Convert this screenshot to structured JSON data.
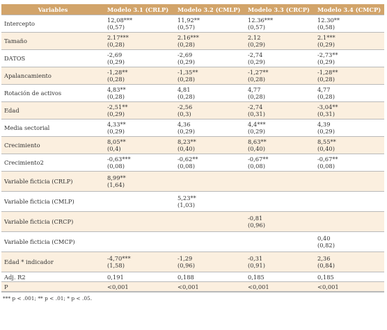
{
  "table": {
    "headers": [
      "Variables",
      "Modelo 3.1 (CRLP)",
      "Modelo 3.2 (CMLP)",
      "Modelo 3.3 (CRCP)",
      "Modelo 3.4 (CMCP)"
    ],
    "rows": [
      {
        "label": "Intercepto",
        "shade": "plain",
        "h": "tall",
        "cells": [
          {
            "v": "12,08***",
            "se": "(0,57)"
          },
          {
            "v": "11,92**",
            "se": "(0,57)"
          },
          {
            "v": "12.36***",
            "se": "(0,57)"
          },
          {
            "v": "12.30**",
            "se": "(0,58)"
          }
        ]
      },
      {
        "label": "Tamaño",
        "shade": "tan",
        "h": "tall",
        "cells": [
          {
            "v": "2.17***",
            "se": "(0,28)"
          },
          {
            "v": "2.16***",
            "se": "(0,28)"
          },
          {
            "v": "2.12",
            "se": "(0,29)"
          },
          {
            "v": "2.1***",
            "se": "(0,29)"
          }
        ]
      },
      {
        "label": "DATOS",
        "shade": "plain",
        "h": "tall",
        "cells": [
          {
            "v": "-2,69",
            "se": "(0,29)"
          },
          {
            "v": "-2,69",
            "se": "(0,29)"
          },
          {
            "v": "-2,74",
            "se": "(0,29)"
          },
          {
            "v": "-2,73**",
            "se": "(0,29)"
          }
        ]
      },
      {
        "label": "Apalancamiento",
        "shade": "tan",
        "h": "tall",
        "cells": [
          {
            "v": "-1,28**",
            "se": "(0,28)"
          },
          {
            "v": "-1,35**",
            "se": "(0,28)"
          },
          {
            "v": "-1,27**",
            "se": "(0,28)"
          },
          {
            "v": "-1,28**",
            "se": "(0,28)"
          }
        ]
      },
      {
        "label": "Rotación de activos",
        "shade": "plain",
        "h": "tall",
        "cells": [
          {
            "v": "4,83**",
            "se": "(0,28)"
          },
          {
            "v": "4,81",
            "se": "(0,28)"
          },
          {
            "v": "4,77",
            "se": "(0,28)"
          },
          {
            "v": "4,77",
            "se": "(0,28)"
          }
        ]
      },
      {
        "label": "Edad",
        "shade": "tan",
        "h": "tall",
        "cells": [
          {
            "v": "-2,51**",
            "se": "(0,29)"
          },
          {
            "v": "-2,56",
            "se": "(0,3)"
          },
          {
            "v": "-2,74",
            "se": "(0,31)"
          },
          {
            "v": "-3,04**",
            "se": "(0,31)"
          }
        ]
      },
      {
        "label": "Media sectorial",
        "shade": "plain",
        "h": "tall",
        "cells": [
          {
            "v": "4,33**",
            "se": "(0,29)"
          },
          {
            "v": "4,36",
            "se": "(0,29)"
          },
          {
            "v": "4,4***",
            "se": "(0,29)"
          },
          {
            "v": "4,39",
            "se": "(0,29)"
          }
        ]
      },
      {
        "label": "Crecimiento",
        "shade": "tan",
        "h": "tall",
        "cells": [
          {
            "v": "8,05**",
            "se": "(0,4)"
          },
          {
            "v": "8,23**",
            "se": "(0,40)"
          },
          {
            "v": "8,63**",
            "se": "(0,40)"
          },
          {
            "v": "8,55**",
            "se": "(0,40)"
          }
        ]
      },
      {
        "label": "Crecimiento2",
        "shade": "plain",
        "h": "tall",
        "cells": [
          {
            "v": "-0,63***",
            "se": "(0,08)"
          },
          {
            "v": "-0,62**",
            "se": "(0,08)"
          },
          {
            "v": "-0,67**",
            "se": "(0,08)"
          },
          {
            "v": "-0,67**",
            "se": "(0,08)"
          }
        ]
      },
      {
        "label": "Variable ficticia (CRLP)",
        "shade": "tan",
        "h": "xtall",
        "cells": [
          {
            "v": "8,99**",
            "se": "(1,64)"
          },
          {
            "v": "",
            "se": ""
          },
          {
            "v": "",
            "se": ""
          },
          {
            "v": "",
            "se": ""
          }
        ]
      },
      {
        "label": "Variable ficticia (CMLP)",
        "shade": "plain",
        "h": "xtall",
        "cells": [
          {
            "v": "",
            "se": ""
          },
          {
            "v": "5,23**",
            "se": "(1,03)"
          },
          {
            "v": "",
            "se": ""
          },
          {
            "v": "",
            "se": ""
          }
        ]
      },
      {
        "label": "Variable ficticia (CRCP)",
        "shade": "tan",
        "h": "xtall",
        "cells": [
          {
            "v": "",
            "se": ""
          },
          {
            "v": "",
            "se": ""
          },
          {
            "v": "-0,81",
            "se": "(0,96)"
          },
          {
            "v": "",
            "se": ""
          }
        ]
      },
      {
        "label": "Variable ficticia (CMCP)",
        "shade": "plain",
        "h": "xtall",
        "cells": [
          {
            "v": "",
            "se": ""
          },
          {
            "v": "",
            "se": ""
          },
          {
            "v": "",
            "se": ""
          },
          {
            "v": "0,40",
            "se": "(0,82)"
          }
        ]
      },
      {
        "label": "Edad * indicador",
        "shade": "tan",
        "h": "xtall",
        "cells": [
          {
            "v": "-4,70***",
            "se": "(1,58)"
          },
          {
            "v": "-1,29",
            "se": "(0,96)"
          },
          {
            "v": "-0,31",
            "se": "(0,91)"
          },
          {
            "v": "2,36",
            "se": "(0,84)"
          }
        ]
      },
      {
        "label": "Adj. R2",
        "shade": "plain",
        "h": "short",
        "cells": [
          {
            "v": "0,191",
            "se": ""
          },
          {
            "v": "0,188",
            "se": ""
          },
          {
            "v": "0,185",
            "se": ""
          },
          {
            "v": "0,185",
            "se": ""
          }
        ]
      },
      {
        "label": "P",
        "shade": "tan",
        "h": "short",
        "cells": [
          {
            "v": "<0,001",
            "se": ""
          },
          {
            "v": "<0,001",
            "se": ""
          },
          {
            "v": "<0,001",
            "se": ""
          },
          {
            "v": "<0,001",
            "se": ""
          }
        ]
      }
    ]
  },
  "note": "*** p < .001; ** p < .01; * p < .05."
}
